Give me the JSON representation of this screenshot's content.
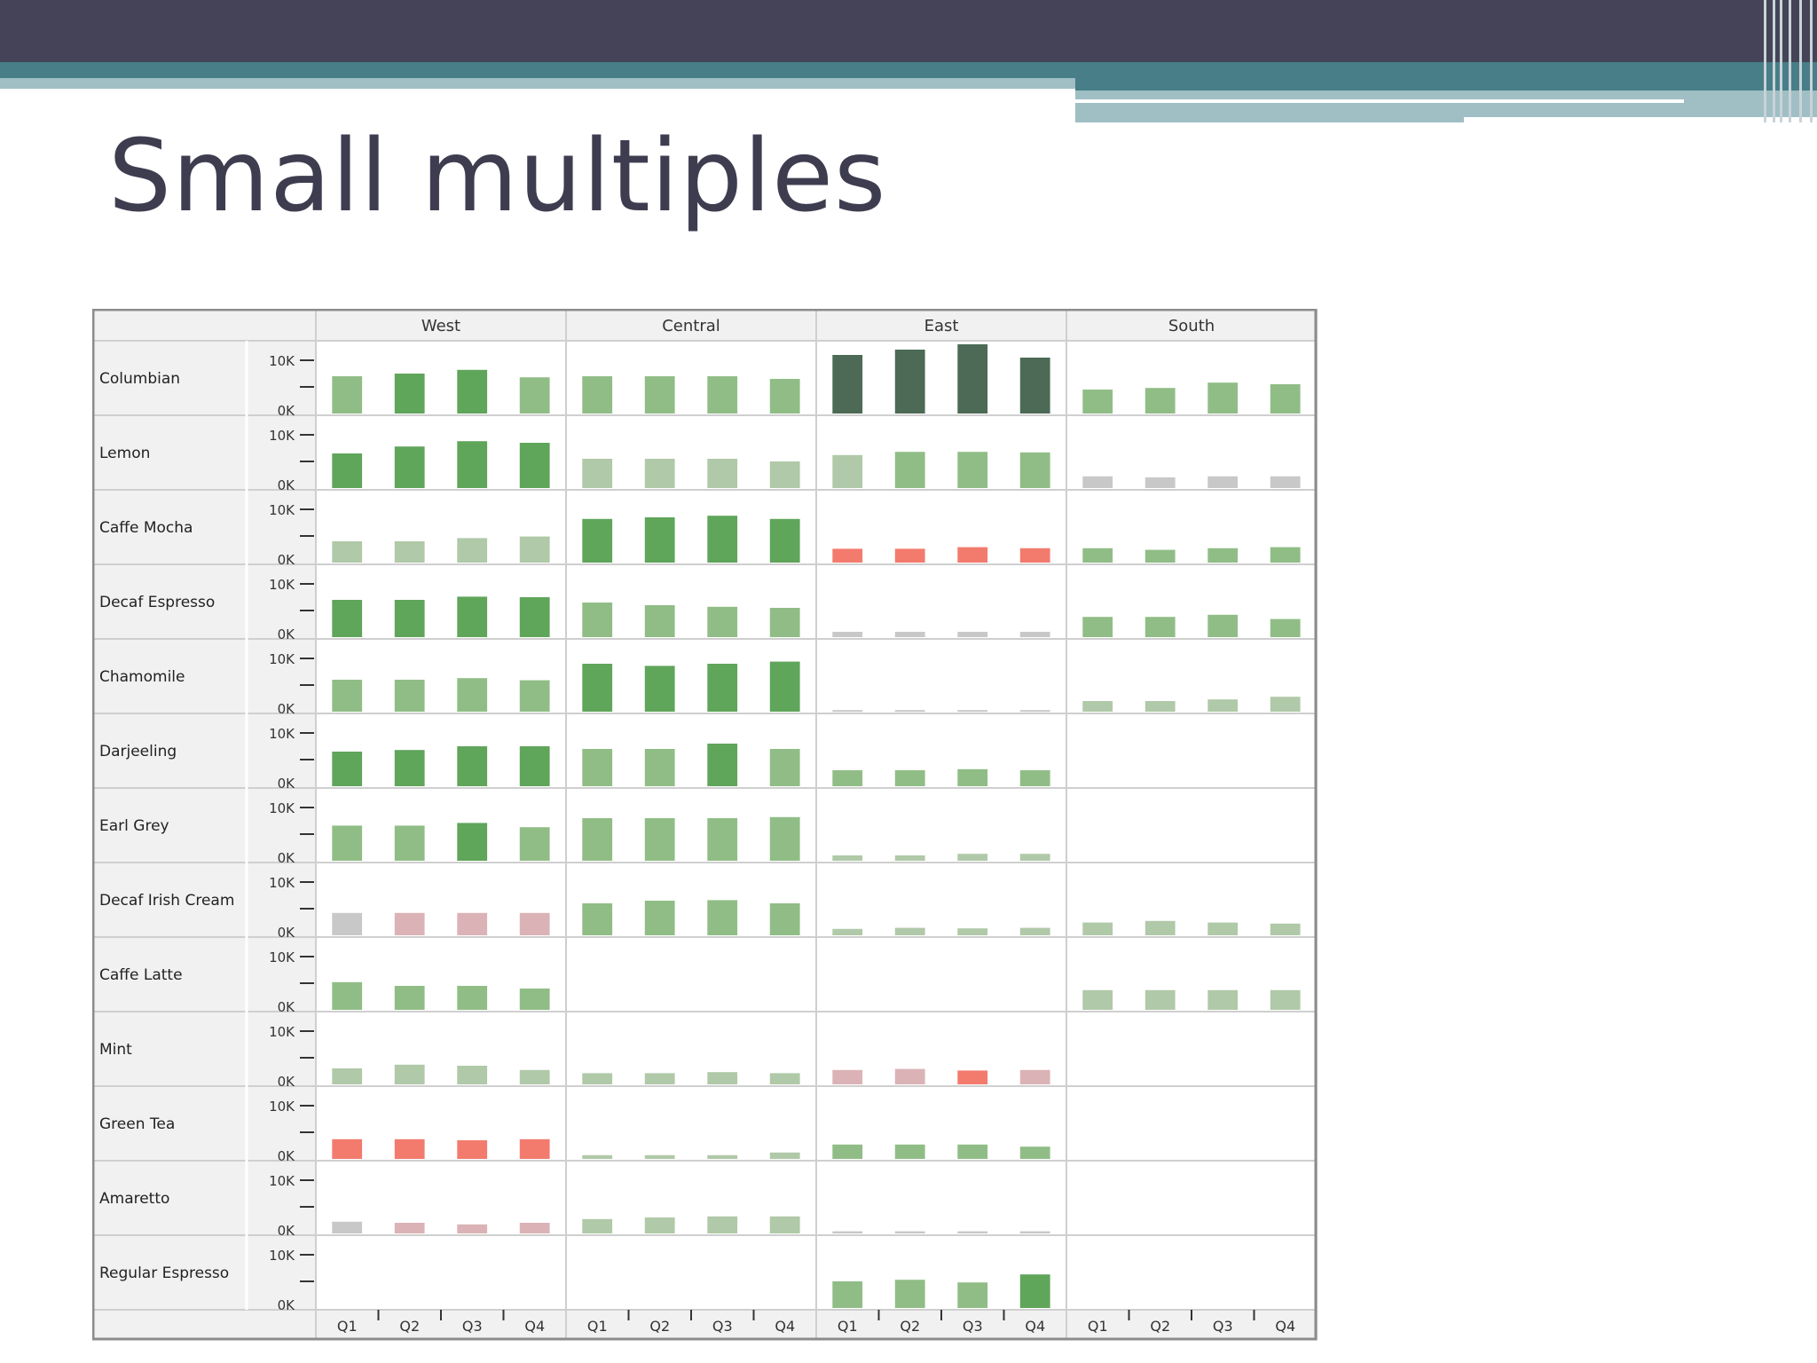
{
  "slide": {
    "title": "Small multiples",
    "colors": {
      "banner": "#444357",
      "teal": "#477e88",
      "light_teal": "#9fbfc5",
      "title_text": "#3e3d50"
    }
  },
  "chart_data": {
    "type": "bar",
    "layout": "small-multiples",
    "title": "",
    "xlabel": "",
    "ylabel": "",
    "columns": [
      "West",
      "Central",
      "East",
      "South"
    ],
    "rows": [
      "Columbian",
      "Lemon",
      "Caffe Mocha",
      "Decaf Espresso",
      "Chamomile",
      "Darjeeling",
      "Earl Grey",
      "Decaf Irish Cream",
      "Caffe Latte",
      "Mint",
      "Green Tea",
      "Amaretto",
      "Regular Espresso"
    ],
    "categories": [
      "Q1",
      "Q2",
      "Q3",
      "Q4"
    ],
    "y_tick_labels": [
      "10K",
      "0K"
    ],
    "ylim": [
      0,
      13000
    ],
    "color_scale": {
      "description": "bar color encodes profit: red negative, grey near zero, green positive, dark green highest",
      "colors": [
        "#f27b6e",
        "#dbb3b6",
        "#c8c8c8",
        "#b0c9a8",
        "#90bd86",
        "#5fa55a",
        "#4c6a56"
      ]
    },
    "panels": [
      {
        "row": "Columbian",
        "column": "West",
        "values": [
          7000,
          7500,
          8200,
          6800
        ],
        "color_level": [
          4,
          5,
          5,
          4
        ]
      },
      {
        "row": "Columbian",
        "column": "Central",
        "values": [
          7000,
          7000,
          7000,
          6500
        ],
        "color_level": [
          4,
          4,
          4,
          4
        ]
      },
      {
        "row": "Columbian",
        "column": "East",
        "values": [
          11000,
          12000,
          13000,
          10500
        ],
        "color_level": [
          6,
          6,
          6,
          6
        ]
      },
      {
        "row": "Columbian",
        "column": "South",
        "values": [
          4500,
          4800,
          5800,
          5500
        ],
        "color_level": [
          4,
          4,
          4,
          4
        ]
      },
      {
        "row": "Lemon",
        "column": "West",
        "values": [
          6500,
          7800,
          8800,
          8500
        ],
        "color_level": [
          5,
          5,
          5,
          5
        ]
      },
      {
        "row": "Lemon",
        "column": "Central",
        "values": [
          5500,
          5500,
          5500,
          5000
        ],
        "color_level": [
          3,
          3,
          3,
          3
        ]
      },
      {
        "row": "Lemon",
        "column": "East",
        "values": [
          6200,
          6800,
          6800,
          6700
        ],
        "color_level": [
          3,
          4,
          4,
          4
        ]
      },
      {
        "row": "Lemon",
        "column": "South",
        "values": [
          2200,
          2000,
          2200,
          2200
        ],
        "color_level": [
          2,
          2,
          2,
          2
        ]
      },
      {
        "row": "Caffe Mocha",
        "column": "West",
        "values": [
          4000,
          4000,
          4600,
          4900
        ],
        "color_level": [
          3,
          3,
          3,
          3
        ]
      },
      {
        "row": "Caffe Mocha",
        "column": "Central",
        "values": [
          8200,
          8500,
          8800,
          8200
        ],
        "color_level": [
          5,
          5,
          5,
          5
        ]
      },
      {
        "row": "Caffe Mocha",
        "column": "East",
        "values": [
          2600,
          2600,
          2900,
          2700
        ],
        "color_level": [
          0,
          0,
          0,
          0
        ]
      },
      {
        "row": "Caffe Mocha",
        "column": "South",
        "values": [
          2700,
          2400,
          2700,
          2900
        ],
        "color_level": [
          4,
          4,
          4,
          4
        ]
      },
      {
        "row": "Decaf Espresso",
        "column": "West",
        "values": [
          7000,
          7000,
          7600,
          7500
        ],
        "color_level": [
          5,
          5,
          5,
          5
        ]
      },
      {
        "row": "Decaf Espresso",
        "column": "Central",
        "values": [
          6500,
          6000,
          5700,
          5500
        ],
        "color_level": [
          4,
          4,
          4,
          4
        ]
      },
      {
        "row": "Decaf Espresso",
        "column": "East",
        "values": [
          1000,
          1000,
          1000,
          1000
        ],
        "color_level": [
          2,
          2,
          2,
          2
        ]
      },
      {
        "row": "Decaf Espresso",
        "column": "South",
        "values": [
          3800,
          3800,
          4200,
          3400
        ],
        "color_level": [
          4,
          4,
          4,
          4
        ]
      },
      {
        "row": "Chamomile",
        "column": "West",
        "values": [
          6000,
          6000,
          6300,
          5900
        ],
        "color_level": [
          4,
          4,
          4,
          4
        ]
      },
      {
        "row": "Chamomile",
        "column": "Central",
        "values": [
          9000,
          8600,
          9000,
          9400
        ],
        "color_level": [
          5,
          5,
          5,
          5
        ]
      },
      {
        "row": "Chamomile",
        "column": "East",
        "values": [
          300,
          300,
          300,
          300
        ],
        "color_level": [
          2,
          2,
          2,
          2
        ]
      },
      {
        "row": "Chamomile",
        "column": "South",
        "values": [
          2000,
          2000,
          2300,
          2800
        ],
        "color_level": [
          3,
          3,
          3,
          3
        ]
      },
      {
        "row": "Darjeeling",
        "column": "West",
        "values": [
          6500,
          6800,
          7500,
          7500
        ],
        "color_level": [
          5,
          5,
          5,
          5
        ]
      },
      {
        "row": "Darjeeling",
        "column": "Central",
        "values": [
          7000,
          7000,
          8000,
          7000
        ],
        "color_level": [
          4,
          4,
          5,
          4
        ]
      },
      {
        "row": "Darjeeling",
        "column": "East",
        "values": [
          3000,
          3000,
          3200,
          3000
        ],
        "color_level": [
          4,
          4,
          4,
          4
        ]
      },
      {
        "row": "Darjeeling",
        "column": "South",
        "values": [],
        "color_level": []
      },
      {
        "row": "Earl Grey",
        "column": "West",
        "values": [
          6600,
          6600,
          7100,
          6300
        ],
        "color_level": [
          4,
          4,
          5,
          4
        ]
      },
      {
        "row": "Earl Grey",
        "column": "Central",
        "values": [
          8000,
          8000,
          8000,
          8200
        ],
        "color_level": [
          4,
          4,
          4,
          4
        ]
      },
      {
        "row": "Earl Grey",
        "column": "East",
        "values": [
          1000,
          1000,
          1300,
          1300
        ],
        "color_level": [
          3,
          3,
          3,
          3
        ]
      },
      {
        "row": "Earl Grey",
        "column": "South",
        "values": [],
        "color_level": []
      },
      {
        "row": "Decaf Irish Cream",
        "column": "West",
        "values": [
          4200,
          4200,
          4200,
          4200
        ],
        "color_level": [
          2,
          1,
          1,
          1
        ]
      },
      {
        "row": "Decaf Irish Cream",
        "column": "Central",
        "values": [
          6000,
          6500,
          6600,
          6000
        ],
        "color_level": [
          4,
          4,
          4,
          4
        ]
      },
      {
        "row": "Decaf Irish Cream",
        "column": "East",
        "values": [
          1200,
          1400,
          1300,
          1400
        ],
        "color_level": [
          3,
          3,
          3,
          3
        ]
      },
      {
        "row": "Decaf Irish Cream",
        "column": "South",
        "values": [
          2400,
          2700,
          2400,
          2200
        ],
        "color_level": [
          3,
          3,
          3,
          3
        ]
      },
      {
        "row": "Caffe Latte",
        "column": "West",
        "values": [
          5200,
          4500,
          4500,
          4000
        ],
        "color_level": [
          4,
          4,
          4,
          4
        ]
      },
      {
        "row": "Caffe Latte",
        "column": "Central",
        "values": [],
        "color_level": []
      },
      {
        "row": "Caffe Latte",
        "column": "East",
        "values": [],
        "color_level": []
      },
      {
        "row": "Caffe Latte",
        "column": "South",
        "values": [
          3700,
          3700,
          3700,
          3700
        ],
        "color_level": [
          3,
          3,
          3,
          3
        ]
      },
      {
        "row": "Mint",
        "column": "West",
        "values": [
          3000,
          3700,
          3500,
          2700
        ],
        "color_level": [
          3,
          3,
          3,
          3
        ]
      },
      {
        "row": "Mint",
        "column": "Central",
        "values": [
          2100,
          2100,
          2300,
          2100
        ],
        "color_level": [
          3,
          3,
          3,
          3
        ]
      },
      {
        "row": "Mint",
        "column": "East",
        "values": [
          2700,
          2900,
          2600,
          2700
        ],
        "color_level": [
          1,
          1,
          0,
          1
        ]
      },
      {
        "row": "Mint",
        "column": "South",
        "values": [],
        "color_level": []
      },
      {
        "row": "Green Tea",
        "column": "West",
        "values": [
          3700,
          3700,
          3500,
          3700
        ],
        "color_level": [
          0,
          0,
          0,
          0
        ]
      },
      {
        "row": "Green Tea",
        "column": "Central",
        "values": [
          700,
          700,
          700,
          1200
        ],
        "color_level": [
          3,
          3,
          3,
          3
        ]
      },
      {
        "row": "Green Tea",
        "column": "East",
        "values": [
          2700,
          2700,
          2700,
          2300
        ],
        "color_level": [
          4,
          4,
          4,
          4
        ]
      },
      {
        "row": "Green Tea",
        "column": "South",
        "values": [],
        "color_level": []
      },
      {
        "row": "Amaretto",
        "column": "West",
        "values": [
          2200,
          2000,
          1700,
          2000
        ],
        "color_level": [
          2,
          1,
          1,
          1
        ]
      },
      {
        "row": "Amaretto",
        "column": "Central",
        "values": [
          2700,
          3000,
          3200,
          3200
        ],
        "color_level": [
          3,
          3,
          3,
          3
        ]
      },
      {
        "row": "Amaretto",
        "column": "East",
        "values": [
          400,
          400,
          400,
          400
        ],
        "color_level": [
          2,
          2,
          2,
          2
        ]
      },
      {
        "row": "Amaretto",
        "column": "South",
        "values": [],
        "color_level": []
      },
      {
        "row": "Regular Espresso",
        "column": "West",
        "values": [],
        "color_level": []
      },
      {
        "row": "Regular Espresso",
        "column": "Central",
        "values": [],
        "color_level": []
      },
      {
        "row": "Regular Espresso",
        "column": "East",
        "values": [
          5000,
          5300,
          4800,
          6300
        ],
        "color_level": [
          4,
          4,
          4,
          5
        ]
      },
      {
        "row": "Regular Espresso",
        "column": "South",
        "values": [],
        "color_level": []
      }
    ]
  }
}
